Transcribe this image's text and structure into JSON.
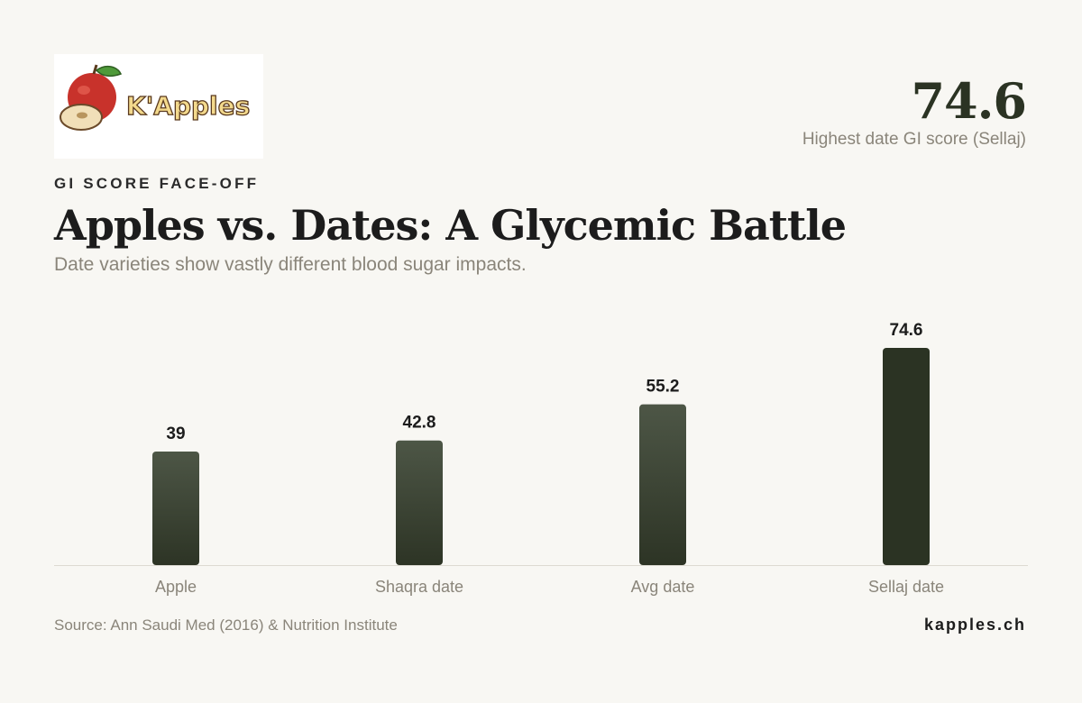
{
  "brand": {
    "logo_text": "K'Apples",
    "site": "kapples.ch"
  },
  "kpi": {
    "value": "74.6",
    "label": "Highest date GI score (Sellaj)"
  },
  "header": {
    "eyebrow": "GI SCORE FACE-OFF",
    "title": "Apples vs. Dates: A Glycemic Battle",
    "subtitle": "Date varieties show vastly different blood sugar impacts."
  },
  "footer": {
    "source": "Source: Ann Saudi Med (2016) & Nutrition Institute"
  },
  "colors": {
    "bar_top": "#4d5646",
    "bar_bottom": "#2d3425",
    "bar_highlight": "#2b3323",
    "axis": "#dddad2",
    "text_muted": "#8a857a",
    "text_dark": "#1c1c1c"
  },
  "chart_data": {
    "type": "bar",
    "categories": [
      "Apple",
      "Shaqra date",
      "Avg date",
      "Sellaj date"
    ],
    "values": [
      39,
      42.8,
      55.2,
      74.6
    ],
    "value_labels": [
      "39",
      "42.8",
      "55.2",
      "74.6"
    ],
    "highlight_index": 3,
    "ylim": [
      0,
      74.6
    ],
    "grid": false,
    "title": "Apples vs. Dates: A Glycemic Battle",
    "subtitle": "Date varieties show vastly different blood sugar impacts.",
    "xlabel": "",
    "ylabel": ""
  }
}
